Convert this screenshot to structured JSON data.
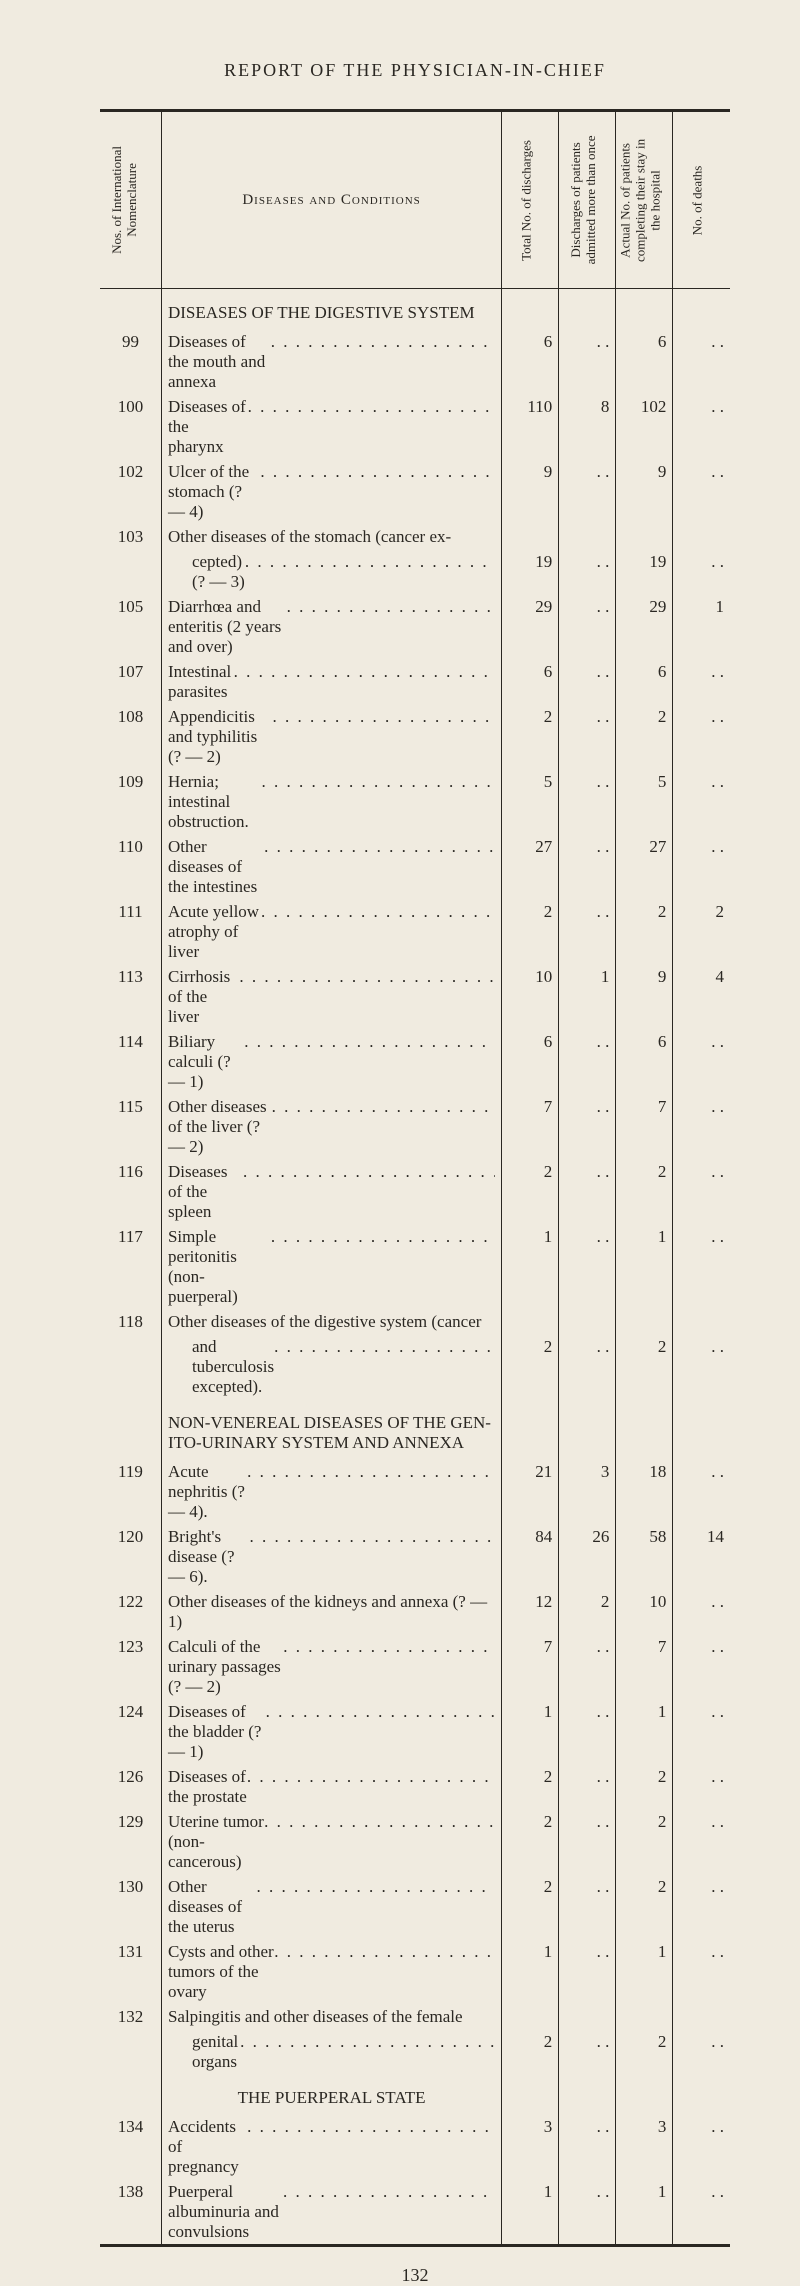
{
  "page_title": "REPORT OF THE PHYSICIAN-IN-CHIEF",
  "page_number": "132",
  "headers": {
    "nos": "Nos. of International\nNomenclature",
    "diseases": "Diseases and Conditions",
    "total": "Total No. of discharges",
    "discharges_more": "Discharges of patients admitted more than once",
    "actual_no": "Actual No. of patients completing their stay in the hospital",
    "deaths": "No. of deaths"
  },
  "rows": [
    {
      "type": "section",
      "name": "DISEASES OF THE DIGESTIVE SYSTEM"
    },
    {
      "no": "99",
      "name": "Diseases of the mouth and annexa",
      "cols": [
        "6",
        "..",
        "6",
        ".."
      ]
    },
    {
      "no": "100",
      "name": "Diseases of the pharynx",
      "cols": [
        "110",
        "8",
        "102",
        ".."
      ]
    },
    {
      "no": "102",
      "name": "Ulcer of the stomach (? — 4)",
      "cols": [
        "9",
        "..",
        "9",
        ".."
      ]
    },
    {
      "no": "103",
      "name": "Other diseases of the stomach (cancer ex-",
      "nowrapname": true,
      "nolead": true,
      "cols": [
        "",
        "",
        "",
        ""
      ]
    },
    {
      "no": "",
      "name": "cepted) (? — 3)",
      "pad": true,
      "cols": [
        "19",
        "..",
        "19",
        ".."
      ]
    },
    {
      "no": "105",
      "name": "Diarrhœa and enteritis (2 years and over)",
      "space_dots": true,
      "cols": [
        "29",
        "..",
        "29",
        "1"
      ]
    },
    {
      "no": "107",
      "name": "Intestinal parasites",
      "cols": [
        "6",
        "..",
        "6",
        ".."
      ]
    },
    {
      "no": "108",
      "name": "Appendicitis and typhilitis (? — 2)",
      "cols": [
        "2",
        "..",
        "2",
        ".."
      ]
    },
    {
      "no": "109",
      "name": "Hernia; intestinal obstruction.",
      "cols": [
        "5",
        "..",
        "5",
        ".."
      ]
    },
    {
      "no": "110",
      "name": "Other diseases of the intestines",
      "cols": [
        "27",
        "..",
        "27",
        ".."
      ]
    },
    {
      "no": "111",
      "name": "Acute yellow atrophy of liver",
      "cols": [
        "2",
        "..",
        "2",
        "2"
      ]
    },
    {
      "no": "113",
      "name": "Cirrhosis of the liver",
      "cols": [
        "10",
        "1",
        "9",
        "4"
      ]
    },
    {
      "no": "114",
      "name": "Biliary calculi (? — 1)",
      "cols": [
        "6",
        "..",
        "6",
        ".."
      ]
    },
    {
      "no": "115",
      "name": "Other diseases of the liver (? — 2)",
      "cols": [
        "7",
        "..",
        "7",
        ".."
      ]
    },
    {
      "no": "116",
      "name": "Diseases of the spleen",
      "cols": [
        "2",
        "..",
        "2",
        ".."
      ]
    },
    {
      "no": "117",
      "name": "Simple peritonitis (non-puerperal)",
      "cols": [
        "1",
        "..",
        "1",
        ".."
      ]
    },
    {
      "no": "118",
      "name": "Other diseases of the digestive system (cancer",
      "nolead": true,
      "cols": [
        "",
        "",
        "",
        ""
      ]
    },
    {
      "no": "",
      "name": "and tuberculosis excepted).",
      "pad": true,
      "cols": [
        "2",
        "..",
        "2",
        ".."
      ]
    },
    {
      "type": "section",
      "name": "NON-VENEREAL DISEASES OF THE GEN-\nITO-URINARY SYSTEM AND ANNEXA"
    },
    {
      "no": "119",
      "name": "Acute nephritis (?— 4).",
      "cols": [
        "21",
        "3",
        "18",
        ".."
      ]
    },
    {
      "no": "120",
      "name": "Bright's disease (? — 6).",
      "cols": [
        "84",
        "26",
        "58",
        "14"
      ]
    },
    {
      "no": "122",
      "name": "Other diseases of the kidneys and annexa (? — 1)",
      "nolead": true,
      "cols": [
        "12",
        "2",
        "10",
        ".."
      ]
    },
    {
      "no": "123",
      "name": "Calculi of the urinary passages (? — 2)",
      "space_dots": true,
      "cols": [
        "7",
        "..",
        "7",
        ".."
      ]
    },
    {
      "no": "124",
      "name": "Diseases of the bladder (? — 1)",
      "cols": [
        "1",
        "..",
        "1",
        ".."
      ]
    },
    {
      "no": "126",
      "name": "Diseases of the prostate",
      "cols": [
        "2",
        "..",
        "2",
        ".."
      ]
    },
    {
      "no": "129",
      "name": "Uterine tumor (non-cancerous)",
      "cols": [
        "2",
        "..",
        "2",
        ".."
      ]
    },
    {
      "no": "130",
      "name": "Other diseases of the uterus",
      "cols": [
        "2",
        "..",
        "2",
        ".."
      ]
    },
    {
      "no": "131",
      "name": "Cysts and other tumors of the ovary",
      "cols": [
        "1",
        "..",
        "1",
        ".."
      ]
    },
    {
      "no": "132",
      "name": "Salpingitis and other diseases of the female",
      "nolead": true,
      "cols": [
        "",
        "",
        "",
        ""
      ]
    },
    {
      "no": "",
      "name": "genital organs",
      "pad": true,
      "cols": [
        "2",
        "..",
        "2",
        ".."
      ]
    },
    {
      "type": "subsection",
      "name": "THE PUERPERAL STATE"
    },
    {
      "no": "134",
      "name": "Accidents of pregnancy",
      "cols": [
        "3",
        "..",
        "3",
        ".."
      ]
    },
    {
      "no": "138",
      "name": "Puerperal albuminuria and convulsions",
      "space_dots": true,
      "cols": [
        "1",
        "..",
        "1",
        ".."
      ]
    }
  ]
}
